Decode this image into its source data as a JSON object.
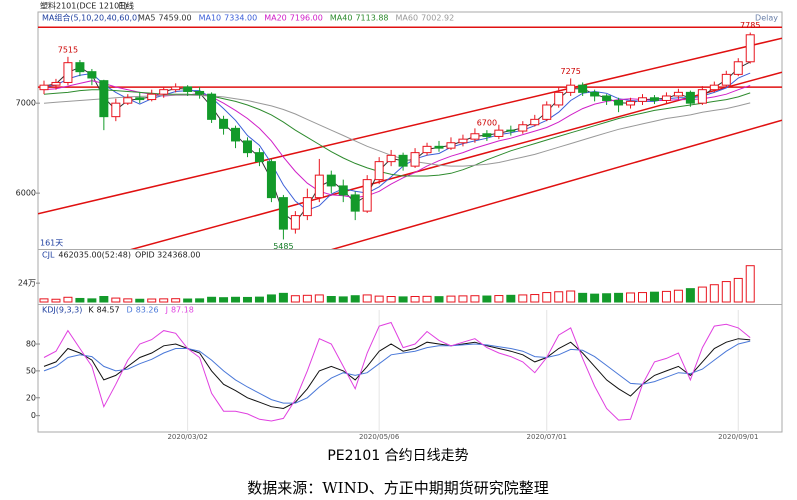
{
  "chart_data": {
    "type": "candlestick",
    "symbol": "塑料2101(DCE 12101)",
    "period": "日线",
    "delay": "Delay",
    "ma_title": "MA组合(5,10,20,40,60,0)",
    "categories": [
      null,
      null,
      null,
      null,
      null,
      null,
      null,
      null,
      null,
      null,
      null,
      null,
      "2020/03/02",
      null,
      null,
      null,
      null,
      null,
      null,
      null,
      null,
      null,
      null,
      null,
      null,
      null,
      null,
      null,
      "2020/05/06",
      null,
      null,
      null,
      null,
      null,
      null,
      null,
      null,
      null,
      null,
      null,
      null,
      null,
      "2020/07/01",
      null,
      null,
      null,
      null,
      null,
      null,
      null,
      null,
      null,
      null,
      null,
      null,
      null,
      null,
      null,
      "2020/09/01",
      null
    ],
    "open": [
      7150,
      7200,
      7230,
      7450,
      7350,
      7250,
      6850,
      7000,
      7060,
      7040,
      7100,
      7150,
      7180,
      7130,
      7100,
      6820,
      6720,
      6580,
      6450,
      6350,
      5950,
      5600,
      5750,
      5950,
      6200,
      6080,
      5980,
      5800,
      6150,
      6350,
      6420,
      6300,
      6450,
      6520,
      6500,
      6560,
      6600,
      6660,
      6630,
      6700,
      6690,
      6760,
      6820,
      6980,
      7120,
      7200,
      7120,
      7080,
      7030,
      6980,
      7020,
      7060,
      7030,
      7080,
      7120,
      7000,
      7150,
      7200,
      7320,
      7460
    ],
    "high": [
      7250,
      7270,
      7515,
      7480,
      7380,
      7260,
      7050,
      7100,
      7120,
      7150,
      7180,
      7220,
      7200,
      7180,
      7120,
      6860,
      6750,
      6620,
      6500,
      6380,
      5980,
      5800,
      6050,
      6380,
      6250,
      6150,
      6020,
      6200,
      6400,
      6480,
      6450,
      6500,
      6560,
      6580,
      6620,
      6650,
      6720,
      6700,
      6760,
      6750,
      6800,
      6870,
      7020,
      7180,
      7275,
      7230,
      7150,
      7100,
      7060,
      7060,
      7100,
      7090,
      7120,
      7160,
      7140,
      7190,
      7240,
      7360,
      7500,
      7785
    ],
    "low": [
      7100,
      7150,
      7200,
      7300,
      7200,
      6700,
      6800,
      6980,
      7000,
      7020,
      7060,
      7120,
      7080,
      7050,
      6780,
      6650,
      6500,
      6400,
      6300,
      5900,
      5485,
      5550,
      5700,
      5900,
      6000,
      5900,
      5700,
      5780,
      6100,
      6300,
      6250,
      6280,
      6420,
      6460,
      6480,
      6520,
      6560,
      6580,
      6600,
      6640,
      6660,
      6740,
      6800,
      6950,
      7080,
      7080,
      7020,
      6980,
      6900,
      6940,
      6980,
      6990,
      7000,
      7040,
      6960,
      6980,
      7120,
      7180,
      7300,
      7440
    ],
    "close": [
      7200,
      7230,
      7450,
      7350,
      7280,
      6850,
      7000,
      7060,
      7040,
      7100,
      7150,
      7180,
      7130,
      7100,
      6820,
      6720,
      6580,
      6450,
      6350,
      5950,
      5600,
      5750,
      5950,
      6200,
      6080,
      5980,
      5800,
      6150,
      6350,
      6420,
      6300,
      6450,
      6520,
      6500,
      6560,
      6600,
      6660,
      6630,
      6700,
      6690,
      6760,
      6820,
      6980,
      7120,
      7200,
      7120,
      7080,
      7030,
      6980,
      7020,
      7060,
      7030,
      7080,
      7120,
      7000,
      7150,
      7200,
      7320,
      7460,
      7760
    ],
    "up_color": "#e8141e",
    "down_color": "#139a2a",
    "ylim": [
      5390,
      7980
    ],
    "yticks": [
      6000,
      7000
    ],
    "ma_series": [
      {
        "name": "MA5",
        "value_label": "7459.00",
        "color": "#333333",
        "values": [
          7190,
          7215,
          7340,
          7400,
          7315,
          7065,
          6925,
          7030,
          7050,
          7070,
          7125,
          7165,
          7155,
          7115,
          6960,
          6770,
          6650,
          6515,
          6400,
          6150,
          5775,
          5675,
          5850,
          6075,
          6140,
          6030,
          5890,
          5975,
          6250,
          6385,
          6360,
          6375,
          6485,
          6510,
          6530,
          6580,
          6630,
          6645,
          6665,
          6695,
          6725,
          6790,
          6900,
          7050,
          7160,
          7160,
          7100,
          7055,
          7005,
          7000,
          7040,
          7045,
          7055,
          7100,
          7060,
          7075,
          7175,
          7260,
          7390,
          7459
        ]
      },
      {
        "name": "MA10",
        "value_label": "7334.00",
        "color": "#3c5fd8",
        "values": [
          7180,
          7200,
          7270,
          7310,
          7330,
          7210,
          7120,
          7050,
          6990,
          7050,
          7090,
          7130,
          7140,
          7140,
          7060,
          6940,
          6810,
          6640,
          6530,
          6330,
          6090,
          5910,
          5810,
          5860,
          5990,
          6050,
          6020,
          6000,
          6070,
          6180,
          6300,
          6380,
          6420,
          6440,
          6510,
          6550,
          6580,
          6610,
          6650,
          6670,
          6700,
          6750,
          6810,
          6900,
          7030,
          7110,
          7130,
          7110,
          7050,
          7030,
          7020,
          7020,
          7050,
          7060,
          7060,
          7080,
          7120,
          7170,
          7280,
          7334
        ]
      },
      {
        "name": "MA20",
        "value_label": "7196.00",
        "color": "#d020c8",
        "values": [
          7150,
          7160,
          7190,
          7220,
          7250,
          7220,
          7180,
          7150,
          7120,
          7100,
          7080,
          7090,
          7090,
          7110,
          7070,
          7000,
          6920,
          6830,
          6720,
          6580,
          6400,
          6240,
          6110,
          6020,
          5980,
          5970,
          5950,
          5970,
          6020,
          6100,
          6170,
          6230,
          6300,
          6360,
          6410,
          6450,
          6500,
          6540,
          6580,
          6610,
          6650,
          6690,
          6730,
          6790,
          6870,
          6940,
          6990,
          7020,
          7040,
          7050,
          7040,
          7030,
          7030,
          7040,
          7040,
          7050,
          7070,
          7100,
          7150,
          7196
        ]
      },
      {
        "name": "MA40",
        "value_label": "7113.88",
        "color": "#2e8b2e",
        "values": [
          7100,
          7110,
          7120,
          7140,
          7150,
          7150,
          7140,
          7130,
          7120,
          7110,
          7100,
          7100,
          7100,
          7090,
          7080,
          7050,
          7020,
          6980,
          6930,
          6870,
          6790,
          6700,
          6620,
          6540,
          6460,
          6390,
          6330,
          6280,
          6240,
          6210,
          6190,
          6190,
          6190,
          6200,
          6220,
          6260,
          6310,
          6370,
          6420,
          6470,
          6510,
          6550,
          6590,
          6630,
          6670,
          6710,
          6750,
          6790,
          6830,
          6860,
          6890,
          6920,
          6940,
          6960,
          6980,
          7000,
          7020,
          7040,
          7070,
          7113.88
        ]
      },
      {
        "name": "MA60",
        "value_label": "7002.92",
        "color": "#999999",
        "values": [
          7000,
          7010,
          7020,
          7030,
          7040,
          7050,
          7060,
          7070,
          7075,
          7080,
          7085,
          7090,
          7090,
          7085,
          7080,
          7070,
          7050,
          7030,
          7000,
          6970,
          6930,
          6880,
          6820,
          6760,
          6700,
          6640,
          6580,
          6520,
          6470,
          6420,
          6380,
          6350,
          6330,
          6310,
          6300,
          6300,
          6310,
          6320,
          6340,
          6370,
          6400,
          6430,
          6470,
          6510,
          6550,
          6590,
          6630,
          6670,
          6710,
          6740,
          6770,
          6800,
          6830,
          6850,
          6870,
          6900,
          6920,
          6940,
          6970,
          7002.92
        ]
      }
    ],
    "hlines": [
      7844,
      7178
    ],
    "channels": [
      [
        5770,
        7722
      ],
      [
        5091,
        7344
      ],
      [
        4434,
        6811
      ]
    ],
    "line_color": "#e01010",
    "price_labels": [
      7515,
      6700,
      7275,
      5485,
      7785
    ],
    "days_label": "161天",
    "volume": {
      "title": "CJL",
      "value_label": "462035.00(52:48)",
      "opid_label": "OPID 324368.00",
      "ylim": [
        0,
        560000
      ],
      "yticks": [
        {
          "value": 240000,
          "label": "24万"
        }
      ],
      "values": [
        40000,
        35000,
        60000,
        45000,
        40000,
        70000,
        50000,
        40000,
        35000,
        38000,
        40000,
        42000,
        38000,
        40000,
        60000,
        55000,
        60000,
        58000,
        62000,
        90000,
        110000,
        80000,
        85000,
        90000,
        70000,
        65000,
        80000,
        90000,
        75000,
        70000,
        65000,
        70000,
        72000,
        68000,
        75000,
        78000,
        80000,
        76000,
        82000,
        85000,
        90000,
        95000,
        120000,
        130000,
        140000,
        110000,
        100000,
        105000,
        110000,
        115000,
        120000,
        125000,
        135000,
        150000,
        170000,
        190000,
        220000,
        260000,
        300000,
        462035
      ]
    },
    "kdj": {
      "title": "KDJ(9,3,3)",
      "ylim": [
        -16,
        118
      ],
      "yticks": [
        0,
        20,
        50,
        80
      ],
      "series": [
        {
          "name": "K",
          "value_label": "84.57",
          "color": "#111111",
          "values": [
            55,
            60,
            75,
            70,
            62,
            40,
            45,
            55,
            65,
            70,
            78,
            80,
            75,
            70,
            50,
            35,
            28,
            20,
            15,
            10,
            8,
            15,
            30,
            50,
            55,
            50,
            40,
            55,
            72,
            80,
            72,
            75,
            82,
            80,
            78,
            80,
            82,
            78,
            75,
            72,
            68,
            60,
            65,
            75,
            82,
            70,
            55,
            40,
            30,
            22,
            35,
            45,
            50,
            55,
            45,
            60,
            75,
            82,
            86,
            84.57
          ]
        },
        {
          "name": "D",
          "value_label": "83.26",
          "color": "#4a78d8",
          "values": [
            50,
            55,
            65,
            68,
            66,
            55,
            50,
            52,
            58,
            63,
            70,
            75,
            75,
            72,
            62,
            50,
            40,
            32,
            25,
            18,
            14,
            14,
            20,
            32,
            42,
            48,
            45,
            48,
            58,
            68,
            70,
            72,
            76,
            78,
            78,
            79,
            80,
            79,
            77,
            75,
            72,
            66,
            65,
            68,
            74,
            73,
            66,
            56,
            46,
            36,
            35,
            38,
            43,
            48,
            47,
            52,
            62,
            72,
            80,
            83.26
          ]
        },
        {
          "name": "J",
          "value_label": "87.18",
          "color": "#e040e0",
          "values": [
            65,
            72,
            95,
            75,
            55,
            10,
            35,
            62,
            80,
            85,
            95,
            92,
            75,
            65,
            25,
            5,
            5,
            2,
            -4,
            -6,
            -3,
            18,
            50,
            86,
            80,
            55,
            30,
            70,
            100,
            104,
            76,
            80,
            94,
            84,
            78,
            82,
            86,
            76,
            70,
            66,
            60,
            48,
            65,
            90,
            98,
            64,
            33,
            8,
            -5,
            -4,
            35,
            60,
            64,
            70,
            40,
            76,
            100,
            102,
            98,
            87.18
          ]
        }
      ]
    },
    "caption": "PE2101 合约日线走势",
    "source": "数据来源：WIND、方正中期期货研究院整理"
  }
}
